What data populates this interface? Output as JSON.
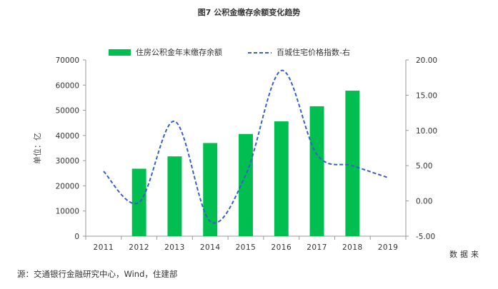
{
  "chart_data": {
    "type": "bar+line",
    "title": "图7 公积金缴存余额变化趋势",
    "categories": [
      "2011",
      "2012",
      "2013",
      "2014",
      "2015",
      "2016",
      "2017",
      "2018",
      "2019"
    ],
    "series": [
      {
        "name": "住房公积金年末缴存余额",
        "kind": "bar",
        "axis": "left",
        "color": "#00BE50",
        "values": [
          null,
          26800,
          31700,
          37000,
          40600,
          45600,
          51600,
          57800,
          null
        ]
      },
      {
        "name": "百城住宅价格指数-右",
        "kind": "line",
        "axis": "right",
        "style": "dashed",
        "color": "#3A5FC8",
        "values": [
          4.2,
          -0.2,
          11.3,
          -2.9,
          3.7,
          18.5,
          6.6,
          5.0,
          3.3
        ]
      }
    ],
    "ylabel": "单位：亿",
    "ylim": [
      0,
      70000
    ],
    "yticks": [
      "0",
      "10000",
      "20000",
      "30000",
      "40000",
      "50000",
      "60000",
      "70000"
    ],
    "y2lim": [
      -5,
      20
    ],
    "y2ticks": [
      "-5.00",
      "0.00",
      "5.00",
      "10.00",
      "15.00",
      "20.00"
    ],
    "legend_position": "top",
    "grid": false
  },
  "source_text": "源：交通银行金融研究中心，Wind，住建部",
  "watermark_text": "数据来"
}
